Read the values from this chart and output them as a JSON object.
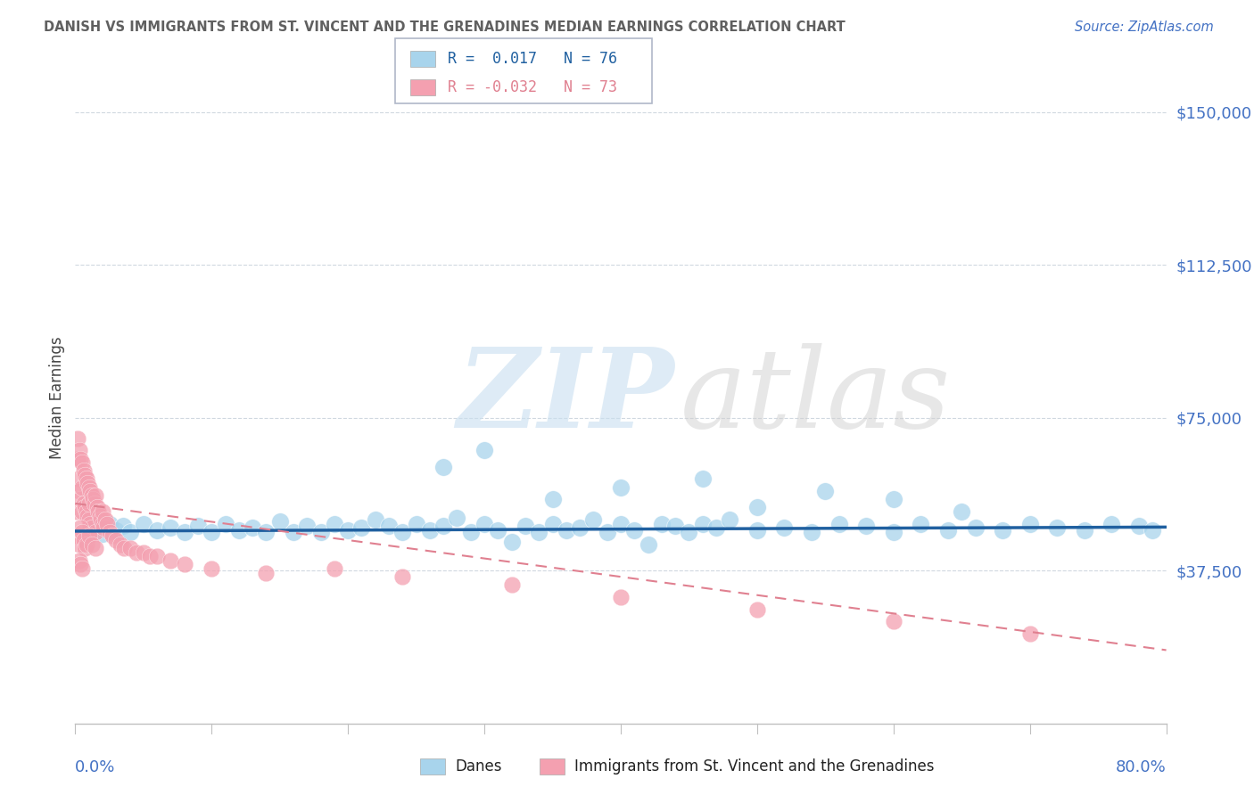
{
  "title": "DANISH VS IMMIGRANTS FROM ST. VINCENT AND THE GRENADINES MEDIAN EARNINGS CORRELATION CHART",
  "source": "Source: ZipAtlas.com",
  "ylabel": "Median Earnings",
  "y_ticks": [
    0,
    37500,
    75000,
    112500,
    150000
  ],
  "y_tick_labels": [
    "",
    "$37,500",
    "$75,000",
    "$112,500",
    "$150,000"
  ],
  "x_range": [
    0.0,
    80.0
  ],
  "y_range": [
    0,
    160000
  ],
  "legend_r1": "R =  0.017",
  "legend_n1": "N = 76",
  "legend_r2": "R = -0.032",
  "legend_n2": "N = 73",
  "blue_color": "#a8d4ec",
  "pink_color": "#f4a0b0",
  "blue_line_color": "#2060a0",
  "pink_line_color": "#e08090",
  "title_color": "#606060",
  "source_color": "#4472c4",
  "axis_label_color": "#4472c4",
  "tick_label_color": "#4472c4",
  "watermark_zip_color": "#c8dff0",
  "watermark_atlas_color": "#d0d0d0",
  "blue_scatter_x": [
    1.0,
    1.5,
    2.0,
    2.5,
    3.0,
    3.5,
    4.0,
    5.0,
    6.0,
    7.0,
    8.0,
    9.0,
    10.0,
    11.0,
    12.0,
    13.0,
    14.0,
    15.0,
    16.0,
    17.0,
    18.0,
    19.0,
    20.0,
    21.0,
    22.0,
    23.0,
    24.0,
    25.0,
    26.0,
    27.0,
    28.0,
    29.0,
    30.0,
    31.0,
    32.0,
    33.0,
    34.0,
    35.0,
    36.0,
    37.0,
    38.0,
    39.0,
    40.0,
    41.0,
    42.0,
    43.0,
    44.0,
    45.0,
    46.0,
    47.0,
    48.0,
    50.0,
    52.0,
    54.0,
    56.0,
    58.0,
    60.0,
    62.0,
    64.0,
    66.0,
    68.0,
    70.0,
    72.0,
    74.0,
    76.0,
    78.0,
    27.0,
    30.0,
    35.0,
    40.0,
    46.0,
    50.0,
    55.0,
    60.0,
    65.0,
    79.0
  ],
  "blue_scatter_y": [
    47000,
    48000,
    46500,
    49000,
    47500,
    48500,
    47000,
    49000,
    47500,
    48000,
    47000,
    48500,
    47000,
    49000,
    47500,
    48000,
    47000,
    49500,
    47000,
    48500,
    47000,
    49000,
    47500,
    48000,
    50000,
    48500,
    47000,
    49000,
    47500,
    48500,
    50500,
    47000,
    49000,
    47500,
    44500,
    48500,
    47000,
    49000,
    47500,
    48000,
    50000,
    47000,
    49000,
    47500,
    44000,
    49000,
    48500,
    47000,
    49000,
    48000,
    50000,
    47500,
    48000,
    47000,
    49000,
    48500,
    47000,
    49000,
    47500,
    48000,
    47500,
    49000,
    48000,
    47500,
    49000,
    48500,
    63000,
    67000,
    55000,
    58000,
    60000,
    53000,
    57000,
    55000,
    52000,
    47500
  ],
  "pink_scatter_x": [
    0.1,
    0.15,
    0.2,
    0.25,
    0.3,
    0.3,
    0.4,
    0.4,
    0.5,
    0.5,
    0.5,
    0.6,
    0.6,
    0.7,
    0.7,
    0.8,
    0.8,
    0.9,
    0.9,
    1.0,
    1.0,
    1.0,
    1.1,
    1.1,
    1.2,
    1.2,
    1.3,
    1.4,
    1.5,
    1.5,
    1.6,
    1.7,
    1.8,
    1.9,
    2.0,
    2.0,
    2.1,
    2.2,
    2.3,
    2.5,
    2.7,
    3.0,
    3.3,
    3.6,
    4.0,
    4.5,
    5.0,
    5.5,
    6.0,
    7.0,
    8.0,
    10.0,
    14.0,
    19.0,
    24.0,
    32.0,
    40.0,
    50.0,
    60.0,
    70.0,
    0.2,
    0.3,
    0.4,
    0.5,
    0.6,
    0.7,
    0.8,
    1.0,
    1.2,
    1.5,
    0.3,
    0.4,
    0.5
  ],
  "pink_scatter_y": [
    52000,
    65000,
    70000,
    60000,
    67000,
    57000,
    65000,
    55000,
    64000,
    58000,
    52000,
    62000,
    54000,
    61000,
    53000,
    60000,
    52000,
    59000,
    51000,
    58000,
    50000,
    54000,
    57000,
    49000,
    56000,
    48000,
    55000,
    54000,
    56000,
    47000,
    53000,
    52000,
    51000,
    50000,
    49000,
    52000,
    48000,
    50000,
    49000,
    47000,
    46000,
    45000,
    44000,
    43000,
    43000,
    42000,
    42000,
    41000,
    41000,
    40000,
    39000,
    38000,
    37000,
    38000,
    36000,
    34000,
    31000,
    28000,
    25000,
    22000,
    46000,
    44000,
    48000,
    47000,
    45000,
    43000,
    44000,
    46000,
    44000,
    43000,
    40000,
    39000,
    38000
  ],
  "blue_trend_x": [
    0,
    80
  ],
  "blue_trend_y": [
    47200,
    48200
  ],
  "pink_trend_x": [
    0,
    80
  ],
  "pink_trend_y": [
    54000,
    18000
  ]
}
